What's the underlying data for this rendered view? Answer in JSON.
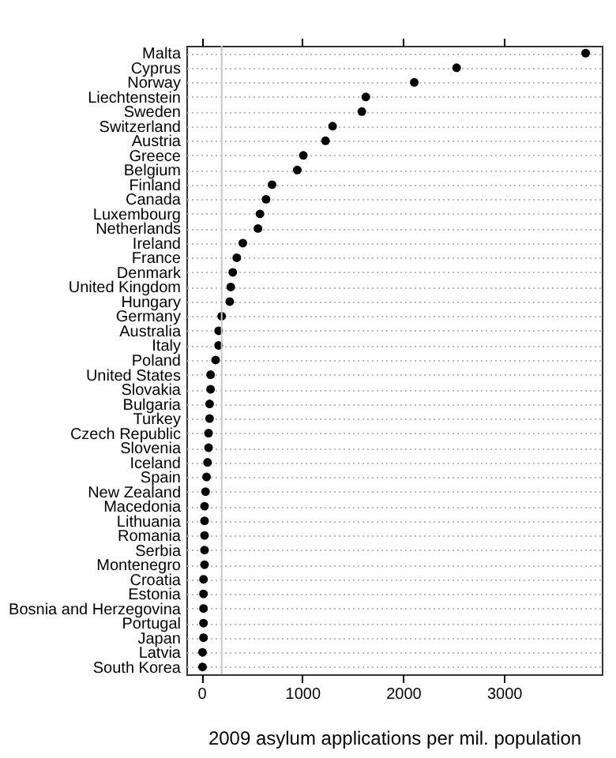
{
  "chart_data": {
    "type": "scatter",
    "xlabel": "2009 asylum applications per mil. population",
    "categories": [
      "Malta",
      "Cyprus",
      "Norway",
      "Liechtenstein",
      "Sweden",
      "Switzerland",
      "Austria",
      "Greece",
      "Belgium",
      "Finland",
      "Canada",
      "Luxembourg",
      "Netherlands",
      "Ireland",
      "France",
      "Denmark",
      "United Kingdom",
      "Hungary",
      "Germany",
      "Australia",
      "Italy",
      "Poland",
      "United States",
      "Slovakia",
      "Bulgaria",
      "Turkey",
      "Czech Republic",
      "Slovenia",
      "Iceland",
      "Spain",
      "New Zealand",
      "Macedonia",
      "Lithuania",
      "Romania",
      "Serbia",
      "Montenegro",
      "Croatia",
      "Estonia",
      "Bosnia and Herzegovina",
      "Portugal",
      "Japan",
      "Latvia",
      "South Korea"
    ],
    "orientation": "horizontal",
    "values": [
      3810,
      2530,
      2110,
      1630,
      1590,
      1300,
      1230,
      1010,
      950,
      700,
      640,
      580,
      560,
      410,
      350,
      310,
      290,
      280,
      200,
      170,
      170,
      140,
      90,
      90,
      80,
      80,
      70,
      70,
      60,
      50,
      40,
      30,
      30,
      30,
      30,
      30,
      20,
      20,
      20,
      20,
      20,
      10,
      10
    ],
    "color": "#000000",
    "marker": "circle",
    "grid": "y",
    "xlim": [
      -150,
      3970
    ],
    "xticks": [
      0,
      1000,
      2000,
      3000
    ],
    "ref_lines": [
      {
        "axis": "x",
        "value": 200,
        "color": "#c8c8c8"
      }
    ]
  }
}
